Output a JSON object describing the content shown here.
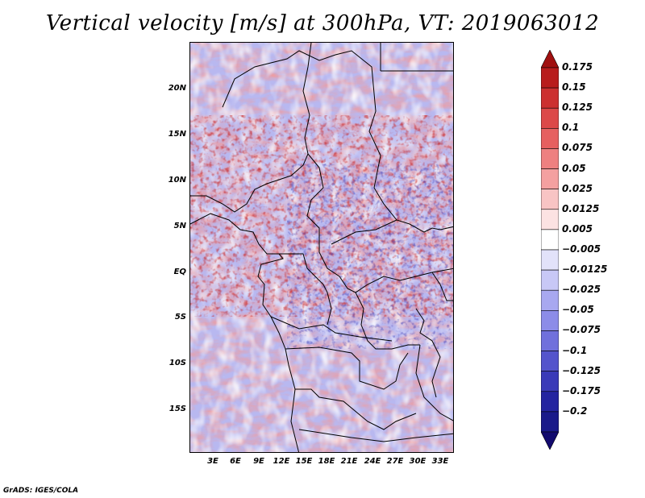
{
  "title": "Vertical velocity [m/s] at 300hPa, VT: 2019063012",
  "credit": "GrADS: IGES/COLA",
  "map": {
    "lat_labels": [
      "20N",
      "15N",
      "10N",
      "5N",
      "EQ",
      "5S",
      "10S",
      "15S"
    ],
    "lon_labels": [
      "3E",
      "6E",
      "9E",
      "12E",
      "15E",
      "18E",
      "21E",
      "24E",
      "27E",
      "30E",
      "33E"
    ]
  },
  "colorbar": {
    "labels": [
      "0.175",
      "0.15",
      "0.125",
      "0.1",
      "0.075",
      "0.05",
      "0.025",
      "0.0125",
      "0.005",
      "−0.005",
      "−0.0125",
      "−0.025",
      "−0.05",
      "−0.075",
      "−0.1",
      "−0.125",
      "−0.175",
      "−0.2"
    ],
    "colors": [
      "#a01010",
      "#b81c1c",
      "#cc3030",
      "#dc4848",
      "#e66060",
      "#ee8080",
      "#f4a0a0",
      "#f8c4c4",
      "#fce2e2",
      "#ffffff",
      "#e2e2fa",
      "#c8c8f6",
      "#a8a8f0",
      "#8c8ce8",
      "#7070dc",
      "#5454cc",
      "#3a3ab8",
      "#2424a0",
      "#1a1a8a",
      "#120a6e"
    ]
  }
}
